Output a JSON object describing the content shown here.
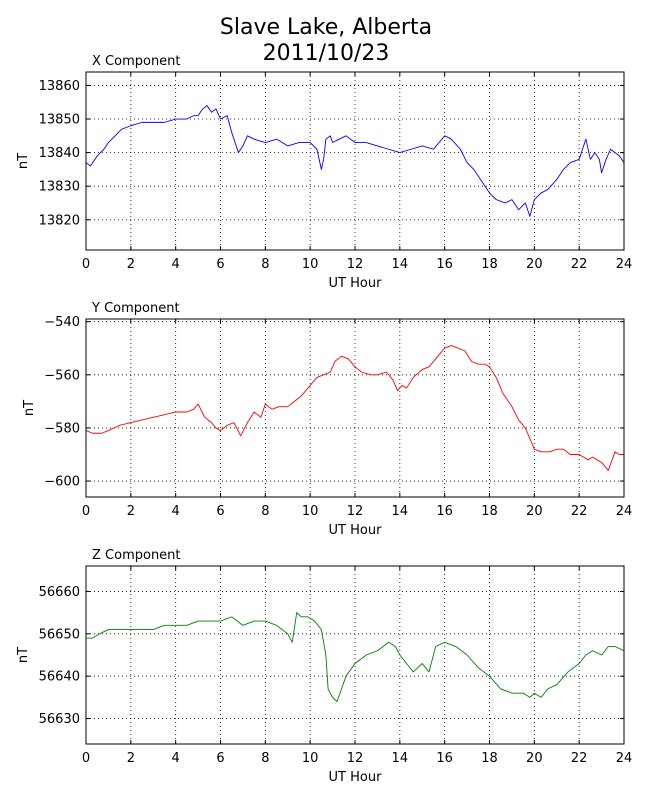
{
  "title_line1": "Slave Lake, Alberta",
  "title_line2": "2011/10/23",
  "chart_data": [
    {
      "type": "line",
      "title": "X Component",
      "xlabel": "UT Hour",
      "ylabel": "nT",
      "xlim": [
        0,
        24
      ],
      "ylim": [
        13811,
        13864
      ],
      "xticks": [
        0,
        2,
        4,
        6,
        8,
        10,
        12,
        14,
        16,
        18,
        20,
        22,
        24
      ],
      "yticks": [
        13820,
        13830,
        13840,
        13850,
        13860
      ],
      "grid": true,
      "series": [
        {
          "color": "#0000ff",
          "x": [
            0,
            0.2,
            0.5,
            0.8,
            1,
            1.3,
            1.6,
            2,
            2.5,
            3,
            3.5,
            4,
            4.5,
            4.8,
            5,
            5.2,
            5.4,
            5.6,
            5.8,
            6,
            6.3,
            6.5,
            6.8,
            7,
            7.2,
            7.5,
            8,
            8.5,
            9,
            9.5,
            10,
            10.3,
            10.5,
            10.6,
            10.7,
            10.9,
            11,
            11.3,
            11.6,
            12,
            12.5,
            13,
            13.5,
            14,
            14.5,
            15,
            15.5,
            16,
            16.3,
            16.7,
            17,
            17.3,
            17.6,
            18,
            18.3,
            18.7,
            19,
            19.3,
            19.6,
            19.8,
            20,
            20.3,
            20.6,
            21,
            21.3,
            21.6,
            22,
            22.3,
            22.5,
            22.7,
            22.9,
            23,
            23.2,
            23.4,
            23.6,
            23.8,
            24
          ],
          "y": [
            13837,
            13836,
            13839,
            13841,
            13843,
            13845,
            13847,
            13848,
            13849,
            13849,
            13849,
            13850,
            13850,
            13851,
            13851,
            13853,
            13854,
            13852,
            13853,
            13850,
            13851,
            13846,
            13840,
            13842,
            13845,
            13844,
            13843,
            13844,
            13842,
            13843,
            13843,
            13841,
            13835,
            13838,
            13844,
            13845,
            13843,
            13844,
            13845,
            13843,
            13843,
            13842,
            13841,
            13840,
            13841,
            13842,
            13841,
            13845,
            13844,
            13841,
            13837,
            13835,
            13832,
            13828,
            13826,
            13825,
            13826,
            13823,
            13825,
            13821,
            13826,
            13828,
            13829,
            13832,
            13835,
            13837,
            13838,
            13844,
            13838,
            13840,
            13838,
            13834,
            13838,
            13841,
            13840,
            13839,
            13837
          ]
        }
      ]
    },
    {
      "type": "line",
      "title": "Y Component",
      "xlabel": "UT Hour",
      "ylabel": "nT",
      "xlim": [
        0,
        24
      ],
      "ylim": [
        -606,
        -539
      ],
      "xticks": [
        0,
        2,
        4,
        6,
        8,
        10,
        12,
        14,
        16,
        18,
        20,
        22,
        24
      ],
      "yticks": [
        -600,
        -580,
        -560,
        -540
      ],
      "grid": true,
      "series": [
        {
          "color": "#ff0000",
          "x": [
            0,
            0.3,
            0.7,
            1,
            1.5,
            2,
            2.5,
            3,
            3.5,
            4,
            4.5,
            4.8,
            5,
            5.3,
            5.6,
            5.8,
            6,
            6.3,
            6.6,
            6.9,
            7.2,
            7.5,
            7.8,
            8,
            8.3,
            8.6,
            9,
            9.3,
            9.6,
            10,
            10.3,
            10.6,
            10.9,
            11.1,
            11.4,
            11.7,
            12,
            12.3,
            12.7,
            13,
            13.4,
            13.7,
            13.9,
            14.1,
            14.3,
            14.6,
            15,
            15.3,
            15.6,
            16,
            16.3,
            16.6,
            16.9,
            17.2,
            17.5,
            17.8,
            18,
            18.3,
            18.6,
            19,
            19.3,
            19.6,
            19.8,
            20,
            20.3,
            20.7,
            21,
            21.3,
            21.6,
            22,
            22.2,
            22.4,
            22.6,
            22.8,
            23,
            23.3,
            23.6,
            23.8,
            24
          ],
          "y": [
            -581,
            -582,
            -582,
            -581,
            -579,
            -578,
            -577,
            -576,
            -575,
            -574,
            -574,
            -573,
            -571,
            -576,
            -578,
            -580,
            -581,
            -579,
            -578,
            -583,
            -578,
            -574,
            -576,
            -571,
            -573,
            -572,
            -572,
            -570,
            -568,
            -564,
            -561,
            -560,
            -559,
            -555,
            -553,
            -554,
            -557,
            -559,
            -560,
            -560,
            -559,
            -562,
            -566,
            -564,
            -565,
            -561,
            -558,
            -557,
            -554,
            -550,
            -549,
            -550,
            -551,
            -555,
            -556,
            -556,
            -557,
            -561,
            -567,
            -572,
            -577,
            -580,
            -584,
            -588,
            -589,
            -589,
            -588,
            -588,
            -590,
            -590,
            -591,
            -592,
            -591,
            -592,
            -593,
            -596,
            -589,
            -590,
            -590
          ]
        }
      ]
    },
    {
      "type": "line",
      "title": "Z Component",
      "xlabel": "UT Hour",
      "ylabel": "nT",
      "xlim": [
        0,
        24
      ],
      "ylim": [
        56624,
        56666
      ],
      "xticks": [
        0,
        2,
        4,
        6,
        8,
        10,
        12,
        14,
        16,
        18,
        20,
        22,
        24
      ],
      "yticks": [
        56630,
        56640,
        56650,
        56660
      ],
      "grid": true,
      "series": [
        {
          "color": "#008000",
          "x": [
            0,
            0.3,
            0.6,
            1,
            1.5,
            2,
            2.5,
            3,
            3.5,
            4,
            4.5,
            5,
            5.5,
            6,
            6.5,
            7,
            7.5,
            8,
            8.5,
            9,
            9.2,
            9.4,
            9.6,
            9.9,
            10.2,
            10.5,
            10.7,
            10.8,
            11,
            11.2,
            11.4,
            11.6,
            12,
            12.5,
            13,
            13.5,
            13.8,
            14,
            14.3,
            14.6,
            15,
            15.3,
            15.6,
            16,
            16.5,
            17,
            17.5,
            18,
            18.5,
            19,
            19.5,
            19.8,
            20,
            20.3,
            20.6,
            21,
            21.5,
            22,
            22.3,
            22.6,
            23,
            23.3,
            23.6,
            24
          ],
          "y": [
            56649,
            56649,
            56650,
            56651,
            56651,
            56651,
            56651,
            56651,
            56652,
            56652,
            56652,
            56653,
            56653,
            56653,
            56654,
            56652,
            56653,
            56653,
            56652,
            56650,
            56648,
            56655,
            56654,
            56654,
            56653,
            56651,
            56645,
            56637,
            56635,
            56634,
            56637,
            56640,
            56643,
            56645,
            56646,
            56648,
            56647,
            56645,
            56643,
            56641,
            56643,
            56641,
            56647,
            56648,
            56647,
            56645,
            56642,
            56640,
            56637,
            56636,
            56636,
            56635,
            56636,
            56635,
            56637,
            56638,
            56641,
            56643,
            56645,
            56646,
            56645,
            56647,
            56647,
            56646
          ]
        }
      ]
    }
  ]
}
